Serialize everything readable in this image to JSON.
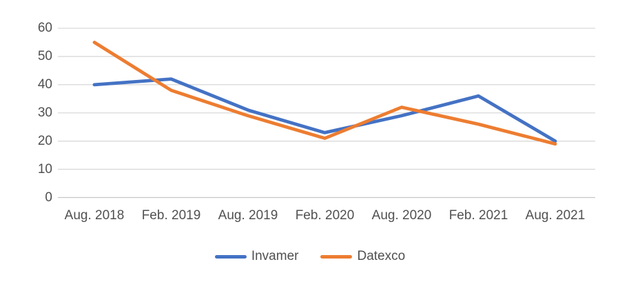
{
  "chart_data": {
    "type": "line",
    "title": "",
    "xlabel": "",
    "ylabel": "",
    "categories": [
      "Aug. 2018",
      "Feb. 2019",
      "Aug. 2019",
      "Feb. 2020",
      "Aug. 2020",
      "Feb. 2021",
      "Aug. 2021"
    ],
    "series": [
      {
        "name": "Invamer",
        "color": "#4472C4",
        "values": [
          40,
          42,
          31,
          23,
          29,
          36,
          20
        ]
      },
      {
        "name": "Datexco",
        "color": "#ED7D31",
        "values": [
          55,
          38,
          29,
          21,
          32,
          26,
          19
        ]
      }
    ],
    "ylim": [
      0,
      60
    ],
    "yticks": [
      0,
      10,
      20,
      30,
      40,
      50,
      60
    ],
    "grid": true,
    "gridline_color": "#D9D9D9",
    "axis_line_color": "#C6C6C6",
    "label_color": "#505050",
    "legend_position": "bottom"
  }
}
